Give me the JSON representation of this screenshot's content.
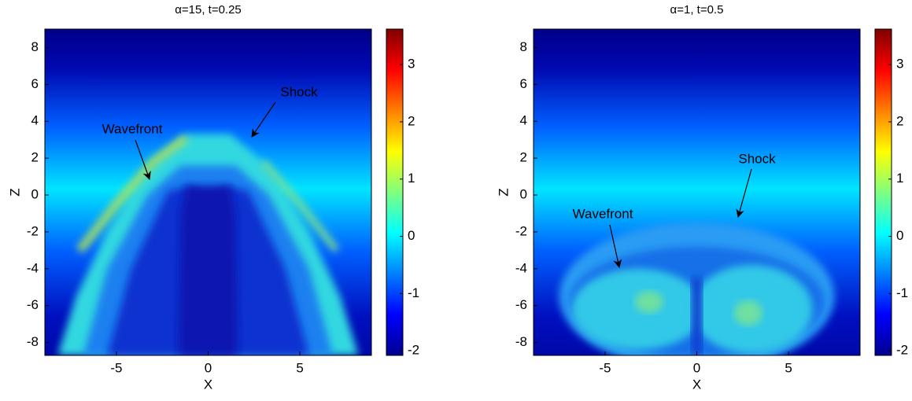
{
  "chart_data": [
    {
      "type": "heatmap",
      "title": "α=15, t=0.25",
      "xlabel": "X",
      "ylabel": "Z",
      "xlim": [
        -8.9,
        8.9
      ],
      "ylim": [
        -8.7,
        9
      ],
      "xticks": [
        -5,
        0,
        5
      ],
      "yticks": [
        -8,
        -6,
        -4,
        -2,
        0,
        2,
        4,
        6,
        8
      ],
      "colorbar": {
        "lim": [
          -2.08,
          3.62
        ],
        "ticks": [
          -2,
          -1,
          0,
          1,
          2,
          3
        ],
        "colormap": "jet"
      },
      "annotations": [
        "Shock",
        "Wavefront"
      ]
    },
    {
      "type": "heatmap",
      "title": "α=1, t=0.5",
      "xlabel": "X",
      "ylabel": "Z",
      "xlim": [
        -8.9,
        8.9
      ],
      "ylim": [
        -8.7,
        9
      ],
      "xticks": [
        -5,
        0,
        5
      ],
      "yticks": [
        -8,
        -6,
        -4,
        -2,
        0,
        2,
        4,
        6,
        8
      ],
      "colorbar": {
        "lim": [
          -2.08,
          3.62
        ],
        "ticks": [
          -2,
          -1,
          0,
          1,
          2,
          3
        ],
        "colormap": "jet"
      },
      "annotations": [
        "Shock",
        "Wavefront"
      ]
    }
  ]
}
